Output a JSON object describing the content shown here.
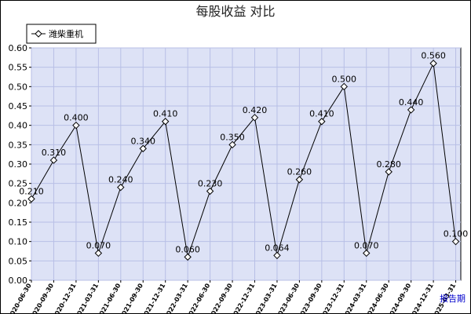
{
  "chart_data": {
    "type": "line",
    "title": "每股收益  对比",
    "xlabel": "报告期",
    "ylabel": "",
    "ylim": [
      0,
      0.6
    ],
    "yticks": [
      "0.00",
      "0.05",
      "0.10",
      "0.15",
      "0.20",
      "0.25",
      "0.30",
      "0.35",
      "0.40",
      "0.45",
      "0.50",
      "0.55",
      "0.60"
    ],
    "grid": true,
    "legend_position": "top-left",
    "categories": [
      "2020-06-30",
      "2020-09-30",
      "2020-12-31",
      "2021-03-31",
      "2021-06-30",
      "2021-09-30",
      "2021-12-31",
      "2022-03-31",
      "2022-06-30",
      "2022-09-30",
      "2022-12-31",
      "2023-03-31",
      "2023-06-30",
      "2023-09-30",
      "2023-12-31",
      "2024-03-31",
      "2024-06-30",
      "2024-09-30",
      "2024-12-31",
      "2025-03-31"
    ],
    "series": [
      {
        "name": "潍柴重机",
        "values": [
          0.21,
          0.31,
          0.4,
          0.07,
          0.24,
          0.34,
          0.41,
          0.06,
          0.23,
          0.35,
          0.42,
          0.064,
          0.26,
          0.41,
          0.5,
          0.07,
          0.28,
          0.44,
          0.56,
          0.1
        ],
        "labels": [
          "0.210",
          "0.310",
          "0.400",
          "0.070",
          "0.240",
          "0.340",
          "0.410",
          "0.060",
          "0.230",
          "0.350",
          "0.420",
          "0.064",
          "0.260",
          "0.410",
          "0.500",
          "0.070",
          "0.280",
          "0.440",
          "0.560",
          "0.100"
        ]
      }
    ],
    "colors": {
      "plot_bg": "#dde2f6",
      "grid": "#b8bfe6",
      "line": "#000000",
      "marker_fill": "#ffffff",
      "marker_stroke": "#000000"
    }
  }
}
